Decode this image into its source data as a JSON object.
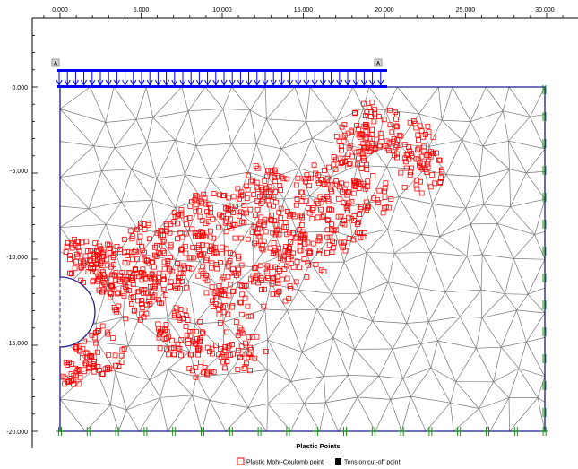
{
  "plot": {
    "title": "Plastic Points",
    "x_ticks": [
      "0.000",
      "5.000",
      "10.000",
      "15.000",
      "20.000",
      "25.000",
      "30.000"
    ],
    "y_ticks": [
      "0.000",
      "-5.000",
      "-10.000",
      "-15.000",
      "-20.000"
    ],
    "load_point_label": "A",
    "colors": {
      "mesh": "#777777",
      "boundary": "#1a1a8c",
      "load": "#0000ff",
      "plastic_point": "#ff0000",
      "fixity": "#008800"
    }
  },
  "legend": {
    "mohr_coulomb_label": "Plastic Mohr-Coulomb point",
    "tension_cutoff_label": "Tension cut-off point"
  }
}
